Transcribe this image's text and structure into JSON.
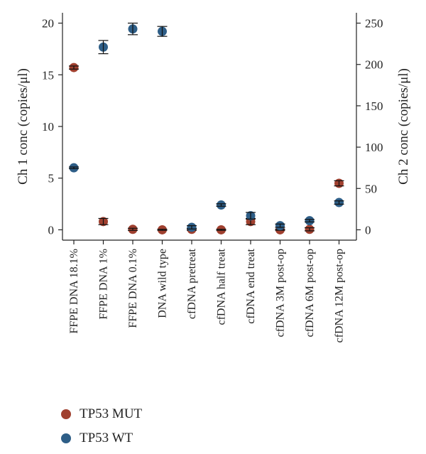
{
  "colors": {
    "mut": "#a0402f",
    "wt": "#2e5e87",
    "axis": "#222222"
  },
  "chart_data": {
    "type": "scatter",
    "categories": [
      "FFPE DNA 18.1%",
      "FFPE DNA 1%",
      "FFPE DNA 0.1%",
      "DNA wild type",
      "cfDNA pretreat",
      "cfDNA half treat",
      "cfDNA end treat",
      "cfDNA 3M post-op",
      "cfDNA 6M post-op",
      "cfDNA 12M post-op"
    ],
    "y_left": {
      "label": "Ch 1 conc (copies/μl)",
      "ylim": [
        -1,
        21
      ],
      "ticks": [
        0,
        5,
        10,
        15,
        20
      ]
    },
    "y_right": {
      "label": "Ch 2 conc (copies/μl)",
      "ylim": [
        -12.5,
        262.5
      ],
      "ticks": [
        0,
        50,
        100,
        150,
        200,
        250
      ]
    },
    "series": [
      {
        "name": "TP53 MUT",
        "axis": "left",
        "color": "#a0402f",
        "values": [
          15.7,
          0.8,
          0.05,
          0.0,
          0.05,
          0.0,
          0.8,
          0.0,
          0.05,
          4.5
        ],
        "errors": [
          0.15,
          0.3,
          0.1,
          0.05,
          0.1,
          0.05,
          0.3,
          0.05,
          0.15,
          0.25
        ]
      },
      {
        "name": "TP53 WT",
        "axis": "right",
        "color": "#2e5e87",
        "values": [
          75,
          221,
          243,
          240,
          3,
          30,
          17,
          5,
          11,
          33
        ],
        "errors": [
          1,
          8,
          7,
          6,
          2,
          1.5,
          4,
          2,
          1.5,
          2
        ]
      }
    ],
    "legend": {
      "position": "bottom-left",
      "entries": [
        "TP53 MUT",
        "TP53 WT"
      ]
    },
    "grid": false
  }
}
